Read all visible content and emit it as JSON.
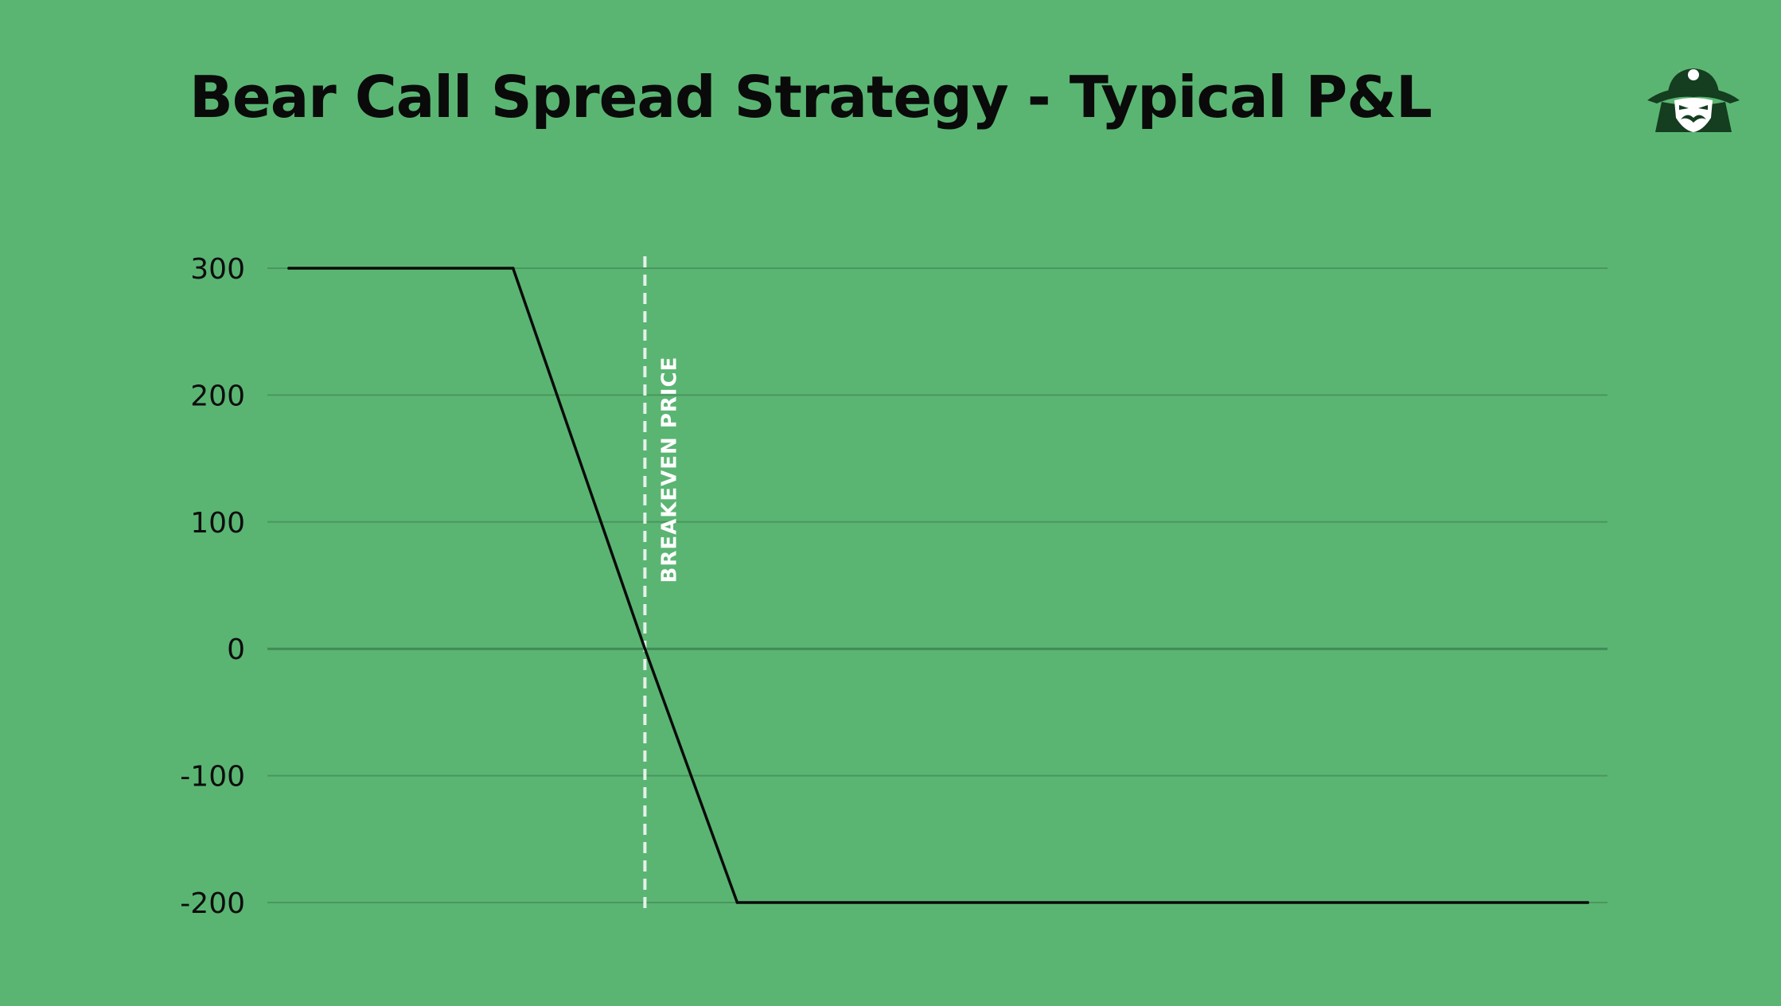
{
  "colors": {
    "background": "#5ab572",
    "line": "#0a0a0a",
    "grid": "#4a9660",
    "zero_line": "#3f8a55",
    "breakeven": "#e6f2ea",
    "logo_dark": "#153d1f",
    "logo_light": "#8fe3aa"
  },
  "logo": {
    "icon": "samurai-helmet-icon"
  },
  "chart_data": {
    "type": "line",
    "title": "Bear Call Spread Strategy - Typical P&L",
    "xlabel": "",
    "ylabel": "",
    "xlim": [
      0,
      100
    ],
    "ylim": [
      -200,
      300
    ],
    "yticks": [
      300,
      200,
      100,
      0,
      -100,
      -200
    ],
    "grid": true,
    "legend": "none",
    "series": [
      {
        "x": [
          0,
          17,
          27,
          34,
          98.5
        ],
        "y": [
          300,
          300,
          0,
          -200,
          -200
        ]
      }
    ],
    "annotations": [
      {
        "type": "vline",
        "x": 27,
        "label": "BREAKEVEN PRICE",
        "style": "dashed"
      }
    ]
  }
}
